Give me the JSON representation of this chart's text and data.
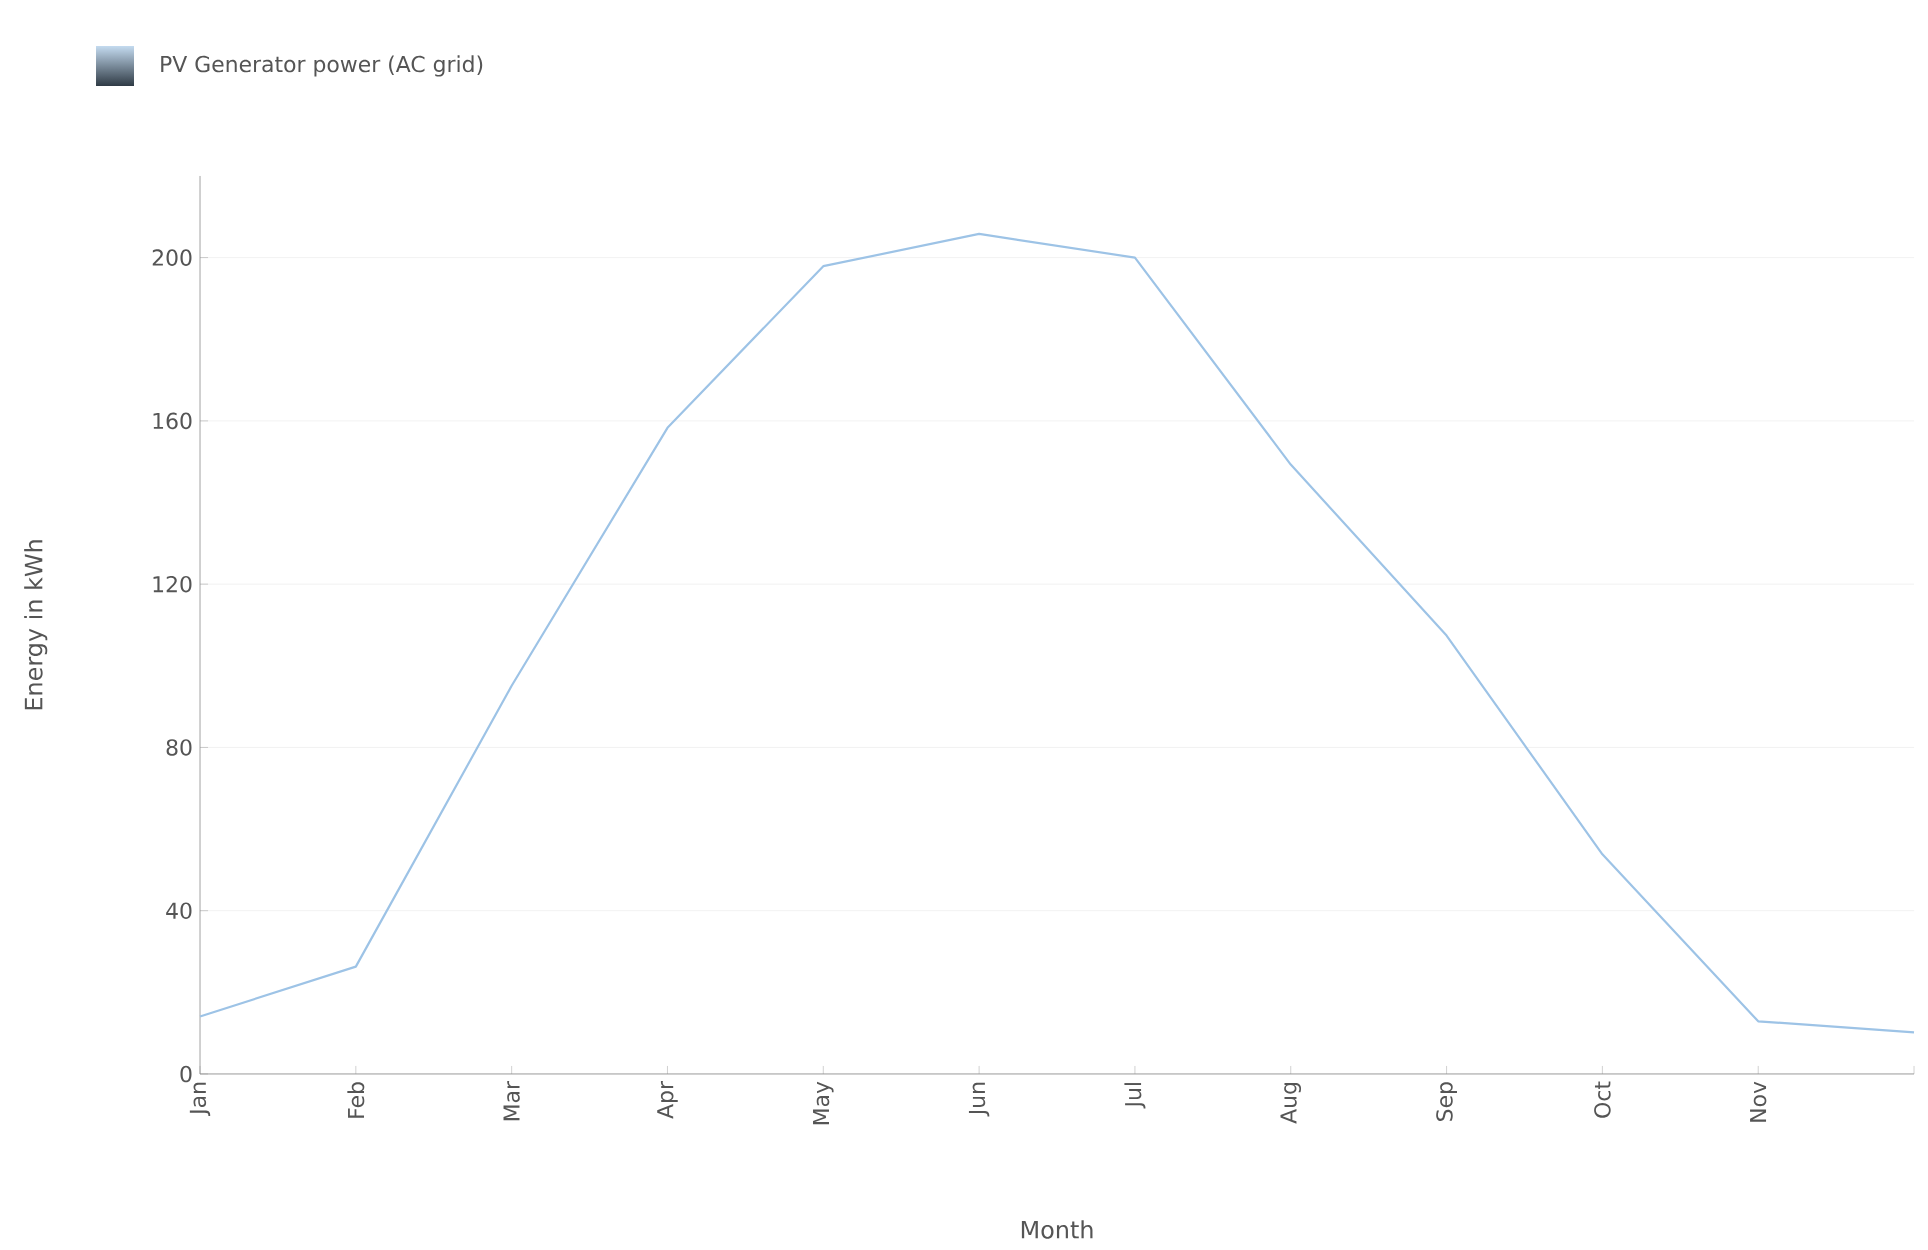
{
  "chart_data": {
    "type": "line",
    "xlabel": "Month",
    "ylabel": "Energy in kWh",
    "categories": [
      "Jan",
      "Feb",
      "Mar",
      "Apr",
      "May",
      "Jun",
      "Jul",
      "Aug",
      "Sep",
      "Oct",
      "Nov",
      null
    ],
    "series": [
      {
        "name": "PV Generator power (AC grid)",
        "color": "#9dc3e6",
        "values": [
          14.1,
          26.3,
          95.1,
          158.3,
          197.9,
          205.8,
          200,
          149.3,
          107.4,
          53.8,
          12.9,
          10.2
        ]
      }
    ],
    "ylim": [
      0,
      220
    ],
    "yticks": [
      0,
      40,
      80,
      120,
      160,
      200
    ],
    "grid": "y",
    "legend": "top left",
    "marker": "none",
    "line_style": "solid"
  }
}
